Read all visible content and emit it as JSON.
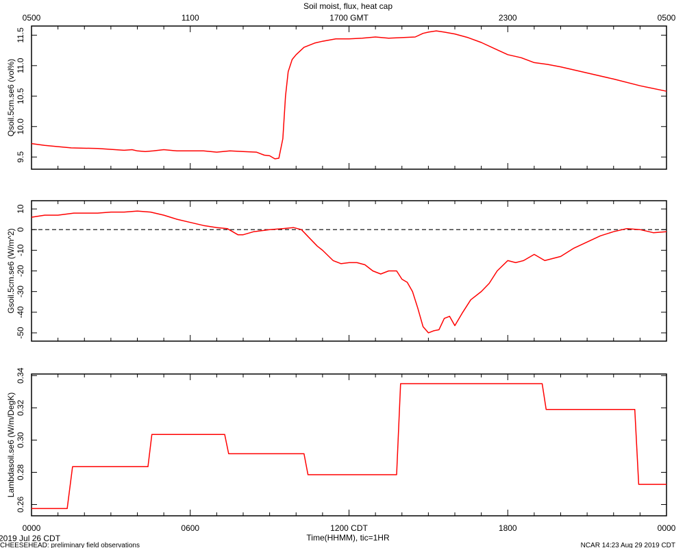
{
  "chart_data": {
    "type": "line",
    "title": "Soil moist, flux, heat cap",
    "top_axis": {
      "range_hours": [
        5,
        29
      ],
      "ticks": [
        {
          "hour": 5,
          "label": "0500"
        },
        {
          "hour": 11,
          "label": "1100"
        },
        {
          "hour": 17,
          "label": "1700 GMT"
        },
        {
          "hour": 23,
          "label": "2300"
        },
        {
          "hour": 29,
          "label": "0500"
        }
      ]
    },
    "bottom_axis": {
      "range_hours": [
        0,
        24
      ],
      "ticks": [
        {
          "hour": 0,
          "label": "0000"
        },
        {
          "hour": 6,
          "label": "0600"
        },
        {
          "hour": 12,
          "label": "1200 CDT"
        },
        {
          "hour": 18,
          "label": "1800"
        },
        {
          "hour": 24,
          "label": "0000"
        }
      ],
      "xlabel": "Time(HHMM), tic=1HR",
      "date_label": "2019 Jul 26 CDT"
    },
    "panels": [
      {
        "ylabel": "Qsoil.5cm.se6 (vol%)",
        "ylim": [
          9.3,
          11.65
        ],
        "yticks": [
          9.5,
          10.0,
          10.5,
          11.0,
          11.5
        ],
        "ytick_labels": [
          "9.5",
          "10.0",
          "10.5",
          "11.0",
          "11.5"
        ],
        "color": "#ff0000",
        "x": [
          0,
          0.5,
          1.5,
          2.5,
          3.5,
          3.8,
          4.0,
          4.3,
          4.6,
          5.0,
          5.5,
          6.0,
          6.5,
          7.0,
          7.5,
          8.0,
          8.5,
          8.8,
          9.0,
          9.2,
          9.35,
          9.5,
          9.6,
          9.7,
          9.85,
          10.0,
          10.3,
          10.7,
          11.0,
          11.5,
          12.0,
          12.5,
          13.0,
          13.5,
          14.0,
          14.5,
          14.8,
          15.0,
          15.3,
          15.6,
          16.0,
          16.5,
          17.0,
          17.5,
          18.0,
          18.5,
          19.0,
          19.5,
          20.0,
          21.0,
          22.0,
          23.0,
          24.0
        ],
        "y": [
          9.72,
          9.69,
          9.65,
          9.64,
          9.61,
          9.62,
          9.6,
          9.59,
          9.6,
          9.62,
          9.6,
          9.6,
          9.6,
          9.58,
          9.6,
          9.59,
          9.58,
          9.53,
          9.52,
          9.47,
          9.48,
          9.8,
          10.5,
          10.9,
          11.1,
          11.18,
          11.3,
          11.37,
          11.4,
          11.44,
          11.44,
          11.45,
          11.47,
          11.45,
          11.46,
          11.47,
          11.53,
          11.55,
          11.57,
          11.55,
          11.52,
          11.46,
          11.38,
          11.28,
          11.18,
          11.13,
          11.05,
          11.02,
          10.98,
          10.88,
          10.78,
          10.67,
          10.58
        ]
      },
      {
        "ylabel": "Gsoil.5cm.se6 (W/m^2)",
        "ylim": [
          -54,
          14
        ],
        "yticks": [
          -50,
          -40,
          -30,
          -20,
          -10,
          0,
          10
        ],
        "ytick_labels": [
          "-50",
          "-40",
          "-30",
          "-20",
          "-10",
          "0",
          "10"
        ],
        "zero_line": true,
        "color": "#ff0000",
        "x": [
          0,
          0.5,
          1.0,
          1.6,
          2.0,
          2.5,
          3.0,
          3.5,
          4.0,
          4.5,
          5.0,
          5.5,
          6.0,
          6.5,
          7.0,
          7.4,
          7.8,
          8.0,
          8.4,
          9.0,
          9.5,
          9.9,
          10.2,
          10.5,
          10.8,
          11.0,
          11.4,
          11.7,
          12.0,
          12.3,
          12.6,
          12.9,
          13.2,
          13.5,
          13.8,
          14.0,
          14.2,
          14.4,
          14.6,
          14.8,
          15.0,
          15.2,
          15.4,
          15.6,
          15.8,
          16.0,
          16.3,
          16.6,
          17.0,
          17.3,
          17.6,
          18.0,
          18.3,
          18.6,
          19.0,
          19.4,
          19.7,
          20.0,
          20.5,
          21.0,
          21.5,
          22.0,
          22.5,
          23.0,
          23.5,
          24.0
        ],
        "y": [
          6,
          7,
          7,
          8,
          8,
          8,
          8.5,
          8.5,
          9,
          8.5,
          7,
          5,
          3.5,
          2,
          1,
          0.5,
          -2.5,
          -2.5,
          -1,
          0,
          0.5,
          1,
          0,
          -4,
          -8,
          -10,
          -15,
          -16.5,
          -16,
          -16,
          -17,
          -20,
          -21.5,
          -20,
          -20,
          -24,
          -25.5,
          -30,
          -38,
          -47,
          -50,
          -49,
          -48.5,
          -43,
          -42,
          -46.5,
          -40,
          -34,
          -30,
          -26,
          -20,
          -15,
          -16,
          -15,
          -12,
          -15,
          -14,
          -13,
          -9,
          -6,
          -3,
          -1,
          0.5,
          0,
          -1.5,
          -1
        ]
      },
      {
        "ylabel": "Lambdasoil.se6 (W/m/DegK)",
        "ylim": [
          0.253,
          0.341
        ],
        "yticks": [
          0.26,
          0.28,
          0.3,
          0.32,
          0.34
        ],
        "ytick_labels": [
          "0.26",
          "0.28",
          "0.30",
          "0.32",
          "0.34"
        ],
        "color": "#ff0000",
        "x": [
          0,
          1.35,
          1.55,
          4.4,
          4.55,
          7.3,
          7.45,
          10.3,
          10.45,
          13.8,
          13.95,
          19.3,
          19.45,
          22.8,
          22.95,
          24.0
        ],
        "y": [
          0.2575,
          0.2575,
          0.2835,
          0.2835,
          0.3035,
          0.3035,
          0.2915,
          0.2915,
          0.2785,
          0.2785,
          0.335,
          0.335,
          0.319,
          0.319,
          0.2725,
          0.2725
        ]
      }
    ],
    "footer_left": "CHEESEHEAD: preliminary field observations",
    "footer_right": "NCAR 14:23 Aug 29 2019 CDT"
  }
}
